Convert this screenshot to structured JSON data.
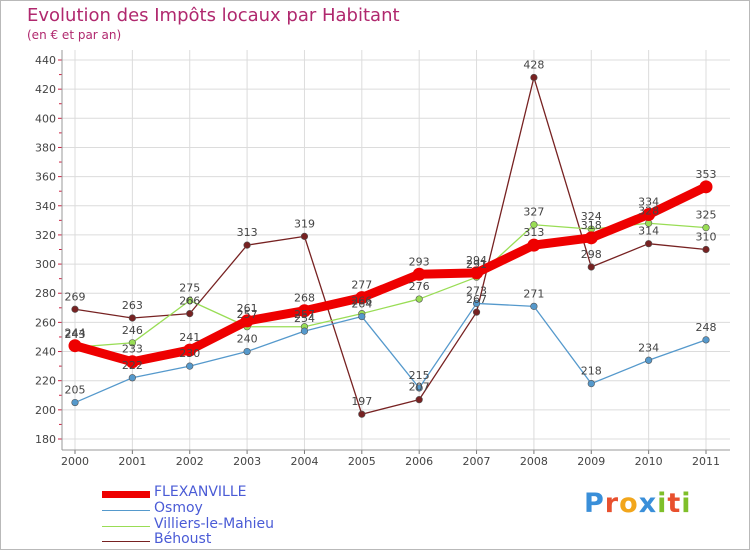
{
  "title": "Evolution des Impôts locaux par Habitant",
  "subtitle": "(en € et par an)",
  "brand": {
    "text": "Proxiti",
    "letters": [
      "P",
      "r",
      "o",
      "x",
      "i",
      "t",
      "i"
    ],
    "colors": [
      "#3a8fd9",
      "#e8502e",
      "#f2a61c",
      "#3a8fd9",
      "#7fbf2a",
      "#e8502e",
      "#7fbf2a"
    ]
  },
  "chart_data": {
    "type": "line",
    "title": "Evolution des Impôts locaux par Habitant",
    "subtitle": "(en € et par an)",
    "xlabel": "",
    "ylabel": "",
    "x": [
      "2000",
      "2001",
      "2002",
      "2003",
      "2004",
      "2005",
      "2006",
      "2007",
      "2008",
      "2009",
      "2010",
      "2011"
    ],
    "ylim": [
      180,
      440
    ],
    "yticks": [
      "180",
      "200",
      "220",
      "240",
      "260",
      "280",
      "300",
      "320",
      "340",
      "360",
      "380",
      "400",
      "420",
      "440"
    ],
    "grid": true,
    "legend": "bottom-left",
    "series": [
      {
        "name": "FLEXANVILLE",
        "color": "#ee0000",
        "values": [
          244,
          233,
          241,
          261,
          268,
          277,
          293,
          294,
          313,
          318,
          334,
          353
        ],
        "labels": [
          "244",
          "233",
          "241",
          "261",
          "268",
          "277",
          "293",
          "294",
          "313",
          "318",
          "334",
          "353"
        ]
      },
      {
        "name": "Osmoy",
        "color": "#5599cc",
        "values": [
          205,
          222,
          230,
          240,
          254,
          264,
          215,
          273,
          271,
          218,
          234,
          248
        ],
        "labels": [
          "205",
          "222",
          "230",
          "240",
          "254",
          "264",
          "215",
          "273",
          "271",
          "218",
          "234",
          "248"
        ]
      },
      {
        "name": "Villiers-le-Mahieu",
        "color": "#99dd55",
        "values": [
          243,
          246,
          275,
          257,
          257,
          266,
          276,
          291,
          327,
          324,
          328,
          325
        ],
        "labels": [
          "243",
          "246",
          "275",
          "257",
          "257",
          "266",
          "276",
          "291",
          "327",
          "324",
          "328",
          "325"
        ]
      },
      {
        "name": "Béhoust",
        "color": "#772222",
        "values": [
          269,
          263,
          266,
          313,
          319,
          197,
          207,
          267,
          428,
          298,
          314,
          310
        ],
        "labels": [
          "269",
          "263",
          "266",
          "313",
          "319",
          "197",
          "207",
          "267",
          "428",
          "298",
          "314",
          "310"
        ]
      }
    ]
  }
}
